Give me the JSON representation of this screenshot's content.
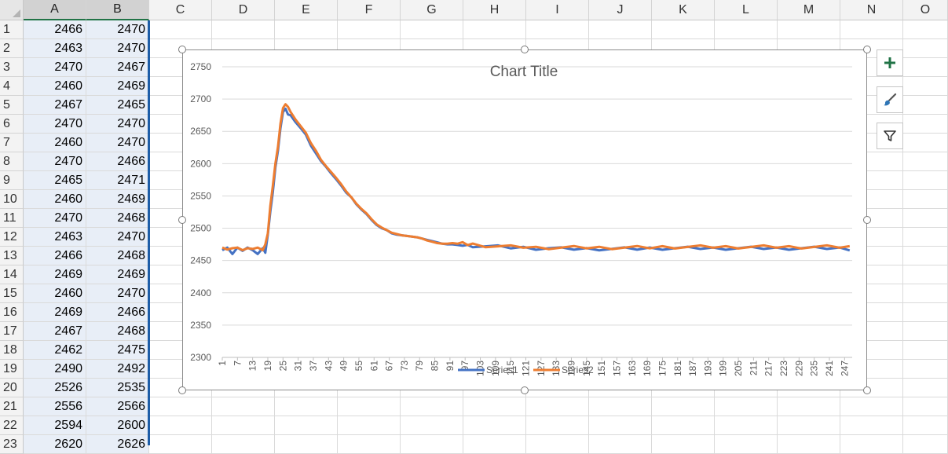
{
  "sheet": {
    "columns": [
      "A",
      "B",
      "C",
      "D",
      "E",
      "F",
      "G",
      "H",
      "I",
      "J",
      "K",
      "L",
      "M",
      "N",
      "O"
    ],
    "rows": [
      {
        "num": "1",
        "a": "2466",
        "b": "2470"
      },
      {
        "num": "2",
        "a": "2463",
        "b": "2470"
      },
      {
        "num": "3",
        "a": "2470",
        "b": "2467"
      },
      {
        "num": "4",
        "a": "2460",
        "b": "2469"
      },
      {
        "num": "5",
        "a": "2467",
        "b": "2465"
      },
      {
        "num": "6",
        "a": "2470",
        "b": "2470"
      },
      {
        "num": "7",
        "a": "2460",
        "b": "2470"
      },
      {
        "num": "8",
        "a": "2470",
        "b": "2466"
      },
      {
        "num": "9",
        "a": "2465",
        "b": "2471"
      },
      {
        "num": "10",
        "a": "2460",
        "b": "2469"
      },
      {
        "num": "11",
        "a": "2470",
        "b": "2468"
      },
      {
        "num": "12",
        "a": "2463",
        "b": "2470"
      },
      {
        "num": "13",
        "a": "2466",
        "b": "2468"
      },
      {
        "num": "14",
        "a": "2469",
        "b": "2469"
      },
      {
        "num": "15",
        "a": "2460",
        "b": "2470"
      },
      {
        "num": "16",
        "a": "2469",
        "b": "2466"
      },
      {
        "num": "17",
        "a": "2467",
        "b": "2468"
      },
      {
        "num": "18",
        "a": "2462",
        "b": "2475"
      },
      {
        "num": "19",
        "a": "2490",
        "b": "2492"
      },
      {
        "num": "20",
        "a": "2526",
        "b": "2535"
      },
      {
        "num": "21",
        "a": "2556",
        "b": "2566"
      },
      {
        "num": "22",
        "a": "2594",
        "b": "2600"
      },
      {
        "num": "23",
        "a": "2620",
        "b": "2626"
      }
    ]
  },
  "chart_data": {
    "type": "line",
    "title": "Chart Title",
    "ylim": [
      2300,
      2750
    ],
    "yticks": [
      2300,
      2350,
      2400,
      2450,
      2500,
      2550,
      2600,
      2650,
      2700,
      2750
    ],
    "xlim": [
      1,
      250
    ],
    "xticks": [
      1,
      7,
      13,
      19,
      25,
      31,
      37,
      43,
      49,
      55,
      61,
      67,
      73,
      79,
      85,
      91,
      97,
      103,
      109,
      115,
      121,
      127,
      133,
      139,
      145,
      151,
      157,
      163,
      169,
      175,
      181,
      187,
      193,
      199,
      205,
      211,
      217,
      223,
      229,
      235,
      241,
      247
    ],
    "grid": true,
    "legend_position": "bottom",
    "series": [
      {
        "name": "Series1",
        "color": "#4472c4",
        "x": [
          1,
          3,
          5,
          7,
          9,
          11,
          13,
          15,
          17,
          18,
          19,
          20,
          21,
          22,
          23,
          24,
          25,
          26,
          27,
          28,
          30,
          32,
          34,
          36,
          38,
          40,
          42,
          44,
          46,
          48,
          50,
          52,
          54,
          56,
          58,
          60,
          62,
          64,
          66,
          68,
          70,
          72,
          74,
          76,
          78,
          80,
          82,
          84,
          86,
          88,
          90,
          92,
          94,
          96,
          98,
          100,
          105,
          110,
          115,
          120,
          125,
          130,
          135,
          140,
          145,
          150,
          155,
          160,
          165,
          170,
          175,
          180,
          185,
          190,
          195,
          200,
          205,
          210,
          215,
          220,
          225,
          230,
          235,
          240,
          245,
          249
        ],
        "values": [
          2466,
          2470,
          2460,
          2470,
          2465,
          2470,
          2466,
          2460,
          2469,
          2462,
          2490,
          2526,
          2556,
          2594,
          2620,
          2655,
          2680,
          2685,
          2676,
          2675,
          2664,
          2655,
          2645,
          2628,
          2616,
          2604,
          2595,
          2585,
          2576,
          2566,
          2555,
          2548,
          2537,
          2529,
          2522,
          2513,
          2505,
          2500,
          2497,
          2492,
          2490,
          2489,
          2488,
          2487,
          2486,
          2484,
          2482,
          2480,
          2478,
          2476,
          2475,
          2475,
          2474,
          2474,
          2473,
          2473,
          2472,
          2471,
          2470,
          2470,
          2469,
          2469,
          2468,
          2468,
          2468,
          2468,
          2468,
          2468,
          2468,
          2469,
          2469,
          2469,
          2469,
          2469,
          2469,
          2469,
          2469,
          2469,
          2469,
          2469,
          2469,
          2469,
          2469,
          2469,
          2469,
          2468
        ]
      },
      {
        "name": "Series2",
        "color": "#ed7d31",
        "x": [
          1,
          3,
          5,
          7,
          9,
          11,
          13,
          15,
          17,
          18,
          19,
          20,
          21,
          22,
          23,
          24,
          25,
          26,
          27,
          28,
          30,
          32,
          34,
          36,
          38,
          40,
          42,
          44,
          46,
          48,
          50,
          52,
          54,
          56,
          58,
          60,
          62,
          64,
          66,
          68,
          70,
          72,
          74,
          76,
          78,
          80,
          82,
          84,
          86,
          88,
          90,
          92,
          94,
          96,
          98,
          100,
          105,
          110,
          115,
          120,
          125,
          130,
          135,
          140,
          145,
          150,
          155,
          160,
          165,
          170,
          175,
          180,
          185,
          190,
          195,
          200,
          205,
          210,
          215,
          220,
          225,
          230,
          235,
          240,
          245,
          249
        ],
        "values": [
          2470,
          2467,
          2469,
          2470,
          2466,
          2469,
          2468,
          2470,
          2466,
          2475,
          2492,
          2535,
          2566,
          2600,
          2626,
          2662,
          2686,
          2692,
          2688,
          2680,
          2668,
          2658,
          2648,
          2632,
          2620,
          2606,
          2596,
          2587,
          2578,
          2568,
          2557,
          2548,
          2538,
          2530,
          2523,
          2514,
          2506,
          2501,
          2497,
          2493,
          2491,
          2489,
          2488,
          2487,
          2486,
          2484,
          2481,
          2479,
          2477,
          2476,
          2476,
          2477,
          2476,
          2476,
          2475,
          2475,
          2473,
          2472,
          2471,
          2471,
          2470,
          2470,
          2470,
          2470,
          2470,
          2470,
          2470,
          2470,
          2470,
          2470,
          2471,
          2471,
          2471,
          2471,
          2471,
          2471,
          2471,
          2471,
          2471,
          2471,
          2471,
          2471,
          2471,
          2471,
          2471,
          2471
        ]
      }
    ]
  },
  "icons": {
    "add": "chart-elements-plus-icon",
    "style": "chart-styles-brush-icon",
    "filter": "chart-filters-funnel-icon"
  }
}
